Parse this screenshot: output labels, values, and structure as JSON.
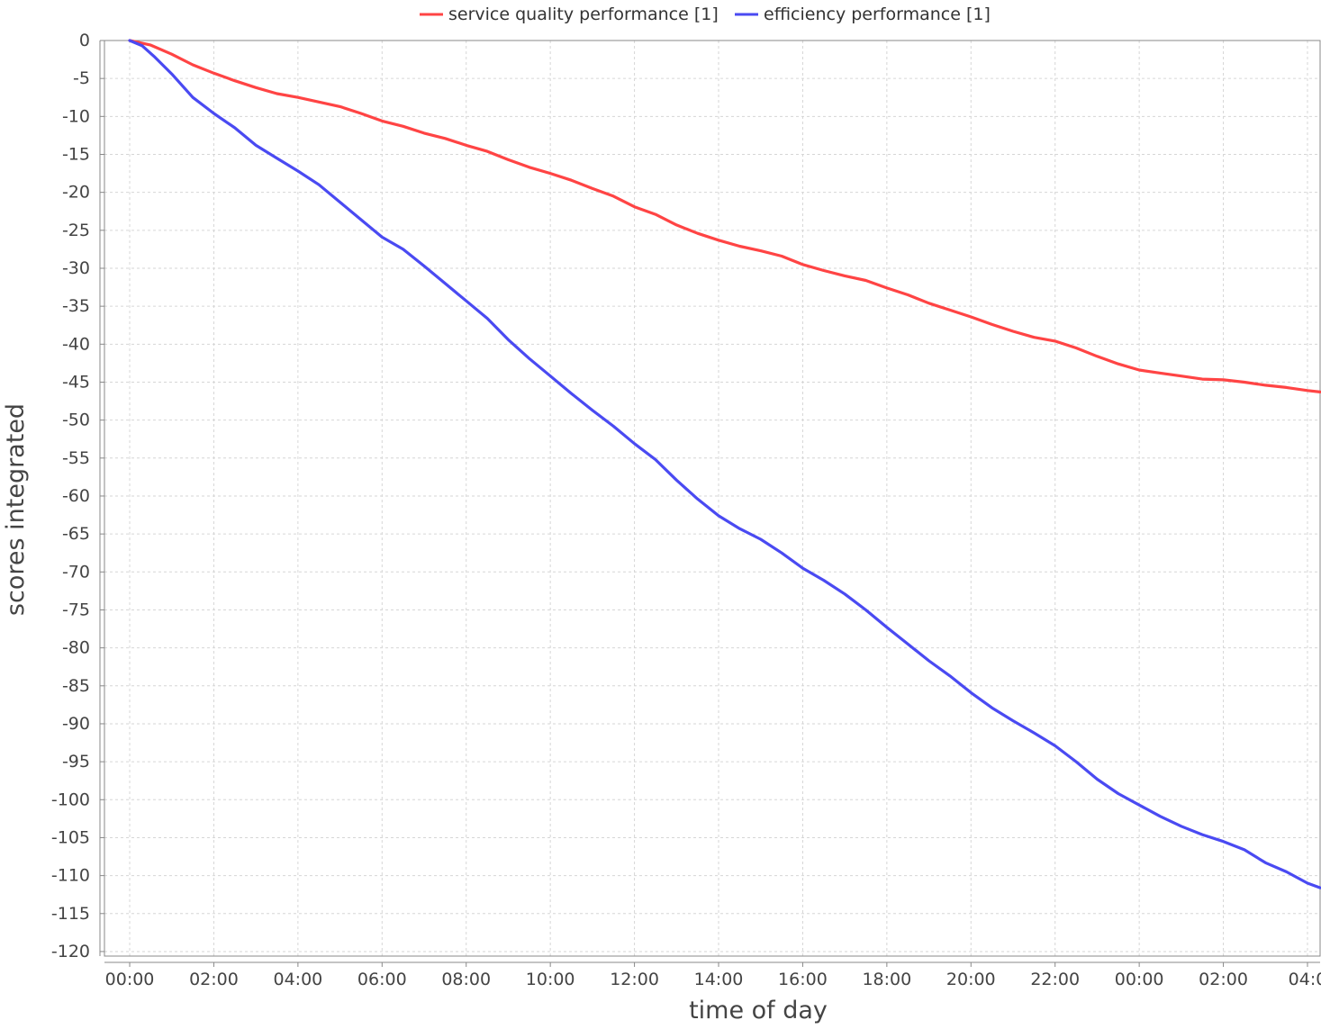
{
  "chart_data": {
    "type": "line",
    "title": "",
    "xlabel": "time of day",
    "ylabel": "scores integrated",
    "x_unit": "hours",
    "x_ticks": [
      {
        "x": 0,
        "label": "00:00"
      },
      {
        "x": 2,
        "label": "02:00"
      },
      {
        "x": 4,
        "label": "04:00"
      },
      {
        "x": 6,
        "label": "06:00"
      },
      {
        "x": 8,
        "label": "08:00"
      },
      {
        "x": 10,
        "label": "10:00"
      },
      {
        "x": 12,
        "label": "12:00"
      },
      {
        "x": 14,
        "label": "14:00"
      },
      {
        "x": 16,
        "label": "16:00"
      },
      {
        "x": 18,
        "label": "18:00"
      },
      {
        "x": 20,
        "label": "20:00"
      },
      {
        "x": 22,
        "label": "22:00"
      },
      {
        "x": 24,
        "label": "00:00"
      },
      {
        "x": 26,
        "label": "02:00"
      },
      {
        "x": 28,
        "label": "04:0"
      }
    ],
    "xlim": [
      -0.6,
      28.3
    ],
    "y_ticks": [
      0,
      -5,
      -10,
      -15,
      -20,
      -25,
      -30,
      -35,
      -40,
      -45,
      -50,
      -55,
      -60,
      -65,
      -70,
      -75,
      -80,
      -85,
      -90,
      -95,
      -100,
      -105,
      -110,
      -115,
      -120
    ],
    "ylim": [
      -120.6,
      0
    ],
    "grid": true,
    "legend_position": "top",
    "series": [
      {
        "name": "service quality performance [1]",
        "color": "#ff4444",
        "points": [
          [
            0,
            0
          ],
          [
            0.5,
            -0.6
          ],
          [
            1,
            -1.8
          ],
          [
            1.5,
            -3.2
          ],
          [
            2,
            -4.3
          ],
          [
            2.5,
            -5.3
          ],
          [
            3,
            -6.2
          ],
          [
            3.5,
            -7.0
          ],
          [
            4,
            -7.5
          ],
          [
            4.5,
            -8.1
          ],
          [
            5,
            -8.7
          ],
          [
            5.5,
            -9.6
          ],
          [
            6,
            -10.6
          ],
          [
            6.5,
            -11.3
          ],
          [
            7,
            -12.2
          ],
          [
            7.5,
            -12.9
          ],
          [
            8,
            -13.8
          ],
          [
            8.5,
            -14.6
          ],
          [
            9,
            -15.7
          ],
          [
            9.5,
            -16.7
          ],
          [
            10,
            -17.5
          ],
          [
            10.5,
            -18.4
          ],
          [
            11,
            -19.5
          ],
          [
            11.5,
            -20.5
          ],
          [
            12,
            -21.9
          ],
          [
            12.5,
            -22.9
          ],
          [
            13,
            -24.3
          ],
          [
            13.5,
            -25.4
          ],
          [
            14,
            -26.3
          ],
          [
            14.5,
            -27.1
          ],
          [
            15,
            -27.7
          ],
          [
            15.5,
            -28.4
          ],
          [
            16,
            -29.5
          ],
          [
            16.5,
            -30.3
          ],
          [
            17,
            -31.0
          ],
          [
            17.5,
            -31.6
          ],
          [
            18,
            -32.6
          ],
          [
            18.5,
            -33.5
          ],
          [
            19,
            -34.6
          ],
          [
            19.5,
            -35.5
          ],
          [
            20,
            -36.4
          ],
          [
            20.5,
            -37.4
          ],
          [
            21,
            -38.3
          ],
          [
            21.5,
            -39.1
          ],
          [
            22,
            -39.6
          ],
          [
            22.5,
            -40.5
          ],
          [
            23,
            -41.6
          ],
          [
            23.5,
            -42.6
          ],
          [
            24,
            -43.4
          ],
          [
            24.5,
            -43.8
          ],
          [
            25,
            -44.2
          ],
          [
            25.5,
            -44.6
          ],
          [
            26,
            -44.7
          ],
          [
            26.5,
            -45.0
          ],
          [
            27,
            -45.4
          ],
          [
            27.5,
            -45.7
          ],
          [
            28,
            -46.1
          ],
          [
            28.3,
            -46.3
          ]
        ]
      },
      {
        "name": "efficiency performance [1]",
        "color": "#4a4af2",
        "points": [
          [
            0,
            0
          ],
          [
            0.3,
            -0.7
          ],
          [
            0.6,
            -2.2
          ],
          [
            1,
            -4.4
          ],
          [
            1.5,
            -7.5
          ],
          [
            2,
            -9.6
          ],
          [
            2.5,
            -11.5
          ],
          [
            3,
            -13.8
          ],
          [
            3.5,
            -15.5
          ],
          [
            4,
            -17.2
          ],
          [
            4.5,
            -19.0
          ],
          [
            5,
            -21.3
          ],
          [
            5.5,
            -23.6
          ],
          [
            6,
            -25.9
          ],
          [
            6.5,
            -27.5
          ],
          [
            7,
            -29.7
          ],
          [
            7.5,
            -32.0
          ],
          [
            8,
            -34.3
          ],
          [
            8.5,
            -36.6
          ],
          [
            9,
            -39.4
          ],
          [
            9.5,
            -41.9
          ],
          [
            10,
            -44.2
          ],
          [
            10.5,
            -46.5
          ],
          [
            11,
            -48.7
          ],
          [
            11.5,
            -50.8
          ],
          [
            12,
            -53.1
          ],
          [
            12.5,
            -55.2
          ],
          [
            13,
            -57.9
          ],
          [
            13.5,
            -60.4
          ],
          [
            14,
            -62.6
          ],
          [
            14.5,
            -64.3
          ],
          [
            15,
            -65.7
          ],
          [
            15.5,
            -67.5
          ],
          [
            16,
            -69.5
          ],
          [
            16.5,
            -71.1
          ],
          [
            17,
            -72.9
          ],
          [
            17.5,
            -75.0
          ],
          [
            18,
            -77.3
          ],
          [
            18.5,
            -79.5
          ],
          [
            19,
            -81.7
          ],
          [
            19.5,
            -83.7
          ],
          [
            20,
            -85.9
          ],
          [
            20.5,
            -87.9
          ],
          [
            21,
            -89.6
          ],
          [
            21.5,
            -91.2
          ],
          [
            22,
            -92.9
          ],
          [
            22.5,
            -95.0
          ],
          [
            23,
            -97.3
          ],
          [
            23.5,
            -99.2
          ],
          [
            24,
            -100.7
          ],
          [
            24.5,
            -102.2
          ],
          [
            25,
            -103.5
          ],
          [
            25.5,
            -104.6
          ],
          [
            26,
            -105.5
          ],
          [
            26.5,
            -106.6
          ],
          [
            27,
            -108.3
          ],
          [
            27.5,
            -109.5
          ],
          [
            28,
            -111.0
          ],
          [
            28.3,
            -111.6
          ]
        ]
      }
    ]
  }
}
